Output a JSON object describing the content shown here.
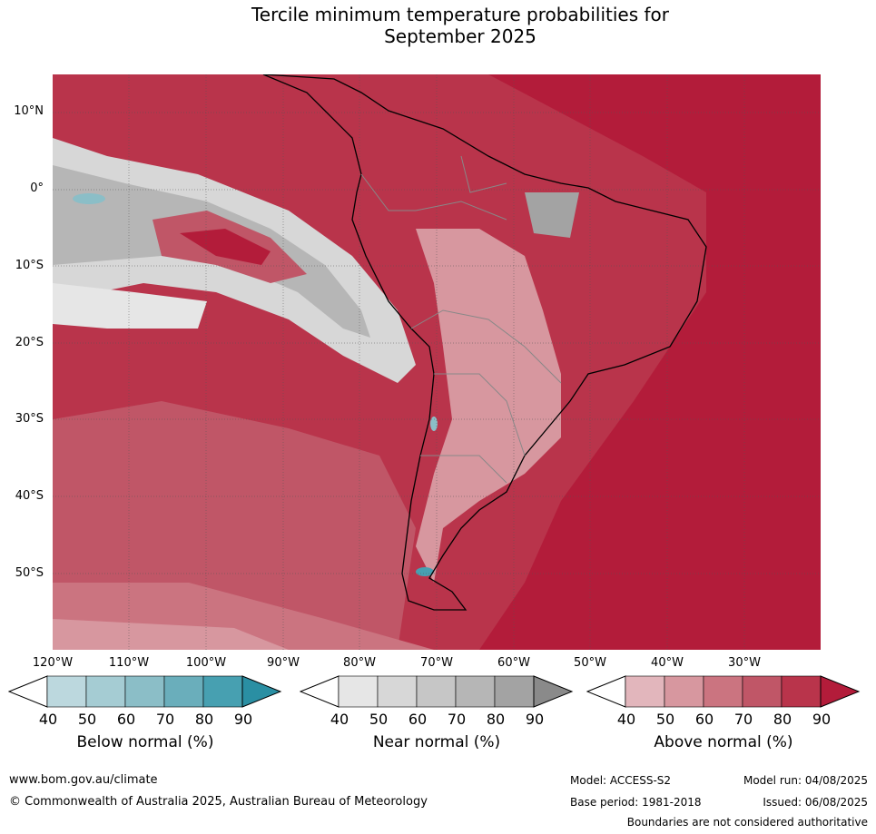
{
  "title_line1": "Tercile minimum temperature probabilities for",
  "title_line2": "September 2025",
  "lat_labels": [
    "10°N",
    "0°",
    "10°S",
    "20°S",
    "30°S",
    "40°S",
    "50°S"
  ],
  "lon_labels": [
    "120°W",
    "110°W",
    "100°W",
    "90°W",
    "80°W",
    "70°W",
    "60°W",
    "50°W",
    "40°W",
    "30°W"
  ],
  "colorbars": [
    {
      "title": "Below normal (%)",
      "ticks": [
        "40",
        "50",
        "60",
        "70",
        "80",
        "90"
      ],
      "colors": [
        "#ffffff",
        "#bcd8de",
        "#a5ccd3",
        "#8bbec7",
        "#6aaebb",
        "#47a0b1",
        "#2a8fa3"
      ]
    },
    {
      "title": "Near normal (%)",
      "ticks": [
        "40",
        "50",
        "60",
        "70",
        "80",
        "90"
      ],
      "colors": [
        "#ffffff",
        "#e6e6e6",
        "#d7d7d7",
        "#c6c6c6",
        "#b6b6b6",
        "#a3a3a3",
        "#8a8a8a"
      ]
    },
    {
      "title": "Above normal (%)",
      "ticks": [
        "40",
        "50",
        "60",
        "70",
        "80",
        "90"
      ],
      "colors": [
        "#ffffff",
        "#e2b6bc",
        "#d7979f",
        "#cb7480",
        "#c05667",
        "#b9344b",
        "#b31c3a"
      ]
    }
  ],
  "footer": {
    "url": "www.bom.gov.au/climate",
    "copyright": "© Commonwealth of Australia 2025, Australian Bureau of Meteorology",
    "model": "Model: ACCESS-S2",
    "model_run": "Model run: 04/08/2025",
    "base_period": "Base period: 1981-2018",
    "issued": "Issued: 06/08/2025",
    "disclaimer": "Boundaries are not considered authoritative"
  }
}
